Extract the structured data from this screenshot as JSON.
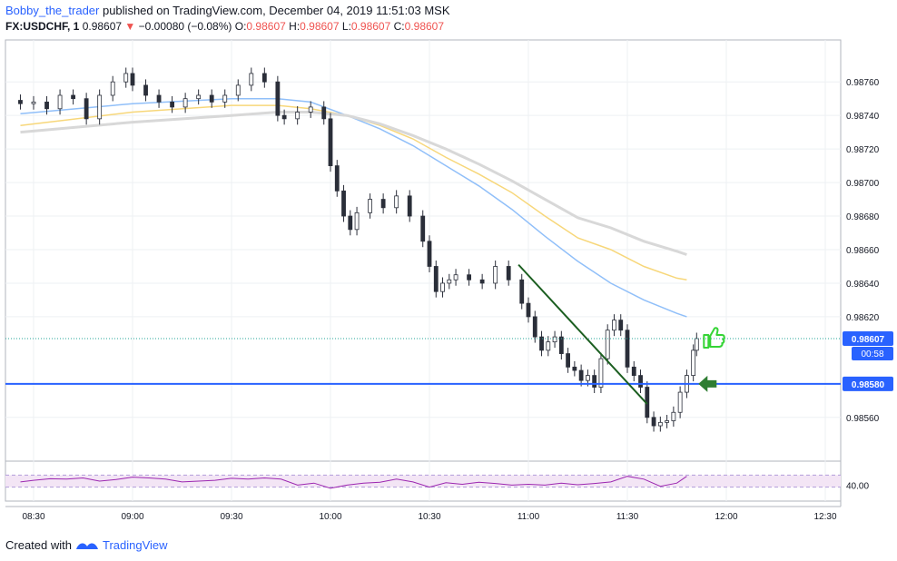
{
  "header": {
    "author": "Bobby_the_trader",
    "published_text": " published on TradingView.com, December 04, 2019 11:51:03 MSK"
  },
  "symbol_bar": {
    "symbol": "FX:USDCHF, 1",
    "last": "0.98607",
    "change": "−0.00080 (−0.08%)",
    "o_label": "O:",
    "o": "0.98607",
    "h_label": "H:",
    "h": "0.98607",
    "l_label": "L:",
    "l": "0.98607",
    "c_label": "C:",
    "c": "0.98607"
  },
  "footer": {
    "created_with": "Created with",
    "brand": "TradingView"
  },
  "colors": {
    "candle": "#2a2e39",
    "ma_fast": "#90bff9",
    "ma_mid": "#f7d77a",
    "ma_slow": "#d8d8d8",
    "support": "#2962ff",
    "trendline": "#1b5e20",
    "rsi": "#9c27b0",
    "rsi_band": "#f3e5f5",
    "thumbs": "#35d435",
    "arrow": "#2e7d32"
  },
  "chart_data": {
    "type": "candlestick",
    "symbol": "FX:USDCHF",
    "interval": "1",
    "x_tick_labels": [
      "08:30",
      "09:00",
      "09:30",
      "10:00",
      "10:30",
      "11:00",
      "11:30",
      "12:00",
      "12:30"
    ],
    "y_tick_labels": [
      "0.98760",
      "0.98740",
      "0.98720",
      "0.98700",
      "0.98680",
      "0.98660",
      "0.98640",
      "0.98620",
      "0.98560"
    ],
    "ylim": [
      0.98535,
      0.98785
    ],
    "grid": true,
    "price_close": "0.98607",
    "countdown": "00:58",
    "support_level": "0.98580",
    "support_value": 0.9858,
    "series": [
      {
        "name": "",
        "type": "candles",
        "x": [
          "08:26",
          "08:30",
          "08:34",
          "08:38",
          "08:42",
          "08:46",
          "08:50",
          "08:54",
          "08:58",
          "09:00",
          "09:04",
          "09:08",
          "09:12",
          "09:16",
          "09:20",
          "09:24",
          "09:28",
          "09:32",
          "09:36",
          "09:40",
          "09:44",
          "09:46",
          "09:50",
          "09:54",
          "09:58",
          "10:00",
          "10:02",
          "10:04",
          "10:06",
          "10:08",
          "10:12",
          "10:16",
          "10:20",
          "10:24",
          "10:28",
          "10:30",
          "10:32",
          "10:34",
          "10:36",
          "10:38",
          "10:42",
          "10:46",
          "10:50",
          "10:54",
          "10:58",
          "11:00",
          "11:02",
          "11:04",
          "11:06",
          "11:08",
          "11:10",
          "11:12",
          "11:14",
          "11:16",
          "11:18",
          "11:20",
          "11:22",
          "11:24",
          "11:26",
          "11:28",
          "11:30",
          "11:32",
          "11:34",
          "11:36",
          "11:38",
          "11:40",
          "11:42",
          "11:44",
          "11:46",
          "11:48",
          "11:50",
          "11:51"
        ],
        "close": [
          0.98747,
          0.98748,
          0.98744,
          0.98752,
          0.9875,
          0.98738,
          0.98752,
          0.9876,
          0.98765,
          0.98758,
          0.98752,
          0.98748,
          0.98745,
          0.9875,
          0.98752,
          0.98748,
          0.98752,
          0.98758,
          0.98765,
          0.9876,
          0.9874,
          0.98738,
          0.98742,
          0.98745,
          0.98738,
          0.9871,
          0.98695,
          0.9868,
          0.98672,
          0.98682,
          0.9869,
          0.98685,
          0.98692,
          0.9868,
          0.98665,
          0.9865,
          0.98635,
          0.9864,
          0.98642,
          0.98645,
          0.98642,
          0.9864,
          0.9865,
          0.98642,
          0.98628,
          0.9862,
          0.98608,
          0.986,
          0.98605,
          0.98608,
          0.98598,
          0.9859,
          0.98588,
          0.98582,
          0.98585,
          0.98578,
          0.98595,
          0.98612,
          0.98618,
          0.98612,
          0.9859,
          0.98585,
          0.98578,
          0.9856,
          0.98555,
          0.98557,
          0.98558,
          0.98563,
          0.98575,
          0.98585,
          0.986,
          0.98607
        ]
      },
      {
        "name": "",
        "type": "ma",
        "role": "fast",
        "x": [
          "08:26",
          "09:00",
          "09:30",
          "09:44",
          "09:54",
          "10:05",
          "10:15",
          "10:25",
          "10:35",
          "10:45",
          "10:55",
          "11:05",
          "11:15",
          "11:25",
          "11:35",
          "11:45",
          "11:48"
        ],
        "y": [
          0.98741,
          0.98747,
          0.9875,
          0.9875,
          0.98748,
          0.9874,
          0.98732,
          0.98722,
          0.9871,
          0.98698,
          0.98684,
          0.98668,
          0.98653,
          0.9864,
          0.9863,
          0.98622,
          0.9862
        ]
      },
      {
        "name": "",
        "type": "ma",
        "role": "mid",
        "x": [
          "08:26",
          "09:00",
          "09:30",
          "09:44",
          "09:54",
          "10:05",
          "10:15",
          "10:25",
          "10:35",
          "10:45",
          "10:55",
          "11:05",
          "11:15",
          "11:25",
          "11:35",
          "11:45",
          "11:48"
        ],
        "y": [
          0.98734,
          0.98742,
          0.98746,
          0.98746,
          0.98744,
          0.9874,
          0.98734,
          0.98726,
          0.98715,
          0.98705,
          0.98694,
          0.9868,
          0.98667,
          0.9866,
          0.9865,
          0.98643,
          0.98642
        ]
      },
      {
        "name": "",
        "type": "ma",
        "role": "slow",
        "x": [
          "08:26",
          "09:00",
          "09:30",
          "09:44",
          "09:54",
          "10:05",
          "10:15",
          "10:25",
          "10:35",
          "10:45",
          "10:55",
          "11:05",
          "11:15",
          "11:25",
          "11:35",
          "11:45",
          "11:48"
        ],
        "y": [
          0.9873,
          0.98736,
          0.9874,
          0.98742,
          0.98742,
          0.9874,
          0.98735,
          0.98728,
          0.9872,
          0.98711,
          0.98701,
          0.9869,
          0.98679,
          0.98673,
          0.98665,
          0.98659,
          0.98657
        ]
      }
    ],
    "trendline": {
      "from": [
        "10:57",
        0.98651
      ],
      "to": [
        "11:36",
        0.98568
      ]
    },
    "rsi": {
      "tick_label": "40.00",
      "band": [
        35,
        65
      ],
      "x": [
        "08:26",
        "08:30",
        "08:35",
        "08:40",
        "08:45",
        "08:50",
        "08:55",
        "09:00",
        "09:05",
        "09:10",
        "09:15",
        "09:20",
        "09:25",
        "09:30",
        "09:35",
        "09:40",
        "09:45",
        "09:50",
        "09:55",
        "10:00",
        "10:05",
        "10:10",
        "10:15",
        "10:20",
        "10:25",
        "10:30",
        "10:35",
        "10:40",
        "10:45",
        "10:50",
        "10:55",
        "11:00",
        "11:05",
        "11:10",
        "11:15",
        "11:20",
        "11:25",
        "11:30",
        "11:35",
        "11:40",
        "11:45",
        "11:48"
      ],
      "values": [
        48,
        52,
        56,
        55,
        58,
        50,
        54,
        60,
        58,
        55,
        48,
        50,
        52,
        57,
        55,
        58,
        55,
        40,
        45,
        32,
        40,
        45,
        47,
        55,
        48,
        35,
        46,
        42,
        47,
        44,
        40,
        42,
        40,
        45,
        41,
        44,
        48,
        62,
        55,
        37,
        45,
        62
      ]
    }
  }
}
